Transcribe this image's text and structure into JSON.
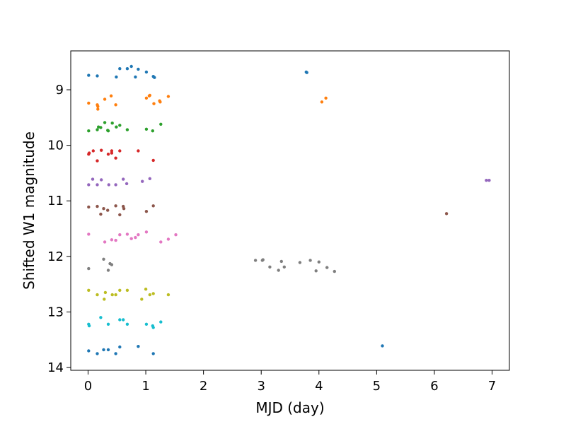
{
  "chart_data": {
    "type": "scatter",
    "xlabel": "MJD (day)",
    "ylabel": "Shifted W1 magnitude",
    "xlim": [
      -0.3,
      7.3
    ],
    "ylim": [
      14.05,
      8.3
    ],
    "y_inverted": true,
    "grid": false,
    "xticks": [
      0,
      1,
      2,
      3,
      4,
      5,
      6,
      7
    ],
    "yticks": [
      9,
      10,
      11,
      12,
      13,
      14
    ],
    "series": [
      {
        "color": "#1f77b4",
        "points": [
          [
            0.01,
            8.74
          ],
          [
            0.16,
            8.75
          ],
          [
            0.49,
            8.77
          ],
          [
            0.55,
            8.62
          ],
          [
            0.68,
            8.62
          ],
          [
            0.75,
            8.58
          ],
          [
            0.82,
            8.77
          ],
          [
            0.87,
            8.63
          ],
          [
            1.01,
            8.68
          ],
          [
            1.13,
            8.76
          ],
          [
            1.15,
            8.78
          ],
          [
            3.78,
            8.68
          ],
          [
            3.79,
            8.69
          ]
        ]
      },
      {
        "color": "#ff7f0e",
        "points": [
          [
            0.01,
            9.24
          ],
          [
            0.16,
            9.27
          ],
          [
            0.17,
            9.3
          ],
          [
            0.17,
            9.35
          ],
          [
            0.29,
            9.17
          ],
          [
            0.4,
            9.11
          ],
          [
            0.48,
            9.27
          ],
          [
            1.01,
            9.15
          ],
          [
            1.06,
            9.11
          ],
          [
            1.07,
            9.1
          ],
          [
            1.14,
            9.25
          ],
          [
            1.24,
            9.2
          ],
          [
            1.25,
            9.22
          ],
          [
            1.39,
            9.12
          ],
          [
            4.05,
            9.22
          ],
          [
            4.12,
            9.15
          ]
        ]
      },
      {
        "color": "#2ca02c",
        "points": [
          [
            0.01,
            9.74
          ],
          [
            0.16,
            9.72
          ],
          [
            0.18,
            9.67
          ],
          [
            0.22,
            9.68
          ],
          [
            0.29,
            9.59
          ],
          [
            0.34,
            9.73
          ],
          [
            0.35,
            9.74
          ],
          [
            0.42,
            9.6
          ],
          [
            0.49,
            9.67
          ],
          [
            0.55,
            9.64
          ],
          [
            0.68,
            9.72
          ],
          [
            1.01,
            9.71
          ],
          [
            1.12,
            9.74
          ],
          [
            1.26,
            9.62
          ]
        ]
      },
      {
        "color": "#d62728",
        "points": [
          [
            0.01,
            10.16
          ],
          [
            0.02,
            10.14
          ],
          [
            0.09,
            10.1
          ],
          [
            0.16,
            10.28
          ],
          [
            0.23,
            10.09
          ],
          [
            0.35,
            10.16
          ],
          [
            0.41,
            10.14
          ],
          [
            0.41,
            10.1
          ],
          [
            0.48,
            10.23
          ],
          [
            0.55,
            10.1
          ],
          [
            0.87,
            10.1
          ],
          [
            1.13,
            10.27
          ]
        ]
      },
      {
        "color": "#9467bd",
        "points": [
          [
            0.01,
            10.71
          ],
          [
            0.08,
            10.61
          ],
          [
            0.16,
            10.71
          ],
          [
            0.23,
            10.62
          ],
          [
            0.36,
            10.71
          ],
          [
            0.48,
            10.71
          ],
          [
            0.61,
            10.61
          ],
          [
            0.67,
            10.69
          ],
          [
            0.94,
            10.65
          ],
          [
            1.07,
            10.6
          ],
          [
            6.9,
            10.63
          ],
          [
            6.95,
            10.63
          ]
        ]
      },
      {
        "color": "#8c564b",
        "points": [
          [
            0.01,
            11.11
          ],
          [
            0.16,
            11.1
          ],
          [
            0.22,
            11.24
          ],
          [
            0.27,
            11.14
          ],
          [
            0.34,
            11.17
          ],
          [
            0.48,
            11.09
          ],
          [
            0.55,
            11.25
          ],
          [
            0.61,
            11.1
          ],
          [
            0.62,
            11.14
          ],
          [
            1.01,
            11.19
          ],
          [
            1.13,
            11.09
          ],
          [
            6.21,
            11.23
          ]
        ]
      },
      {
        "color": "#e377c2",
        "points": [
          [
            0.01,
            11.6
          ],
          [
            0.29,
            11.74
          ],
          [
            0.41,
            11.7
          ],
          [
            0.48,
            11.71
          ],
          [
            0.55,
            11.61
          ],
          [
            0.68,
            11.6
          ],
          [
            0.75,
            11.68
          ],
          [
            0.82,
            11.66
          ],
          [
            0.87,
            11.61
          ],
          [
            1.01,
            11.56
          ],
          [
            1.26,
            11.74
          ],
          [
            1.39,
            11.69
          ],
          [
            1.52,
            11.61
          ]
        ]
      },
      {
        "color": "#7f7f7f",
        "points": [
          [
            0.01,
            12.22
          ],
          [
            0.27,
            12.05
          ],
          [
            0.35,
            12.25
          ],
          [
            0.38,
            12.13
          ],
          [
            0.41,
            12.15
          ],
          [
            2.9,
            12.07
          ],
          [
            3.02,
            12.07
          ],
          [
            3.03,
            12.06
          ],
          [
            3.15,
            12.19
          ],
          [
            3.3,
            12.25
          ],
          [
            3.35,
            12.09
          ],
          [
            3.4,
            12.19
          ],
          [
            3.67,
            12.11
          ],
          [
            3.85,
            12.07
          ],
          [
            3.95,
            12.26
          ],
          [
            4.0,
            12.1
          ],
          [
            4.14,
            12.2
          ],
          [
            4.27,
            12.27
          ]
        ]
      },
      {
        "color": "#bcbd22",
        "points": [
          [
            0.01,
            12.61
          ],
          [
            0.16,
            12.69
          ],
          [
            0.28,
            12.77
          ],
          [
            0.3,
            12.65
          ],
          [
            0.42,
            12.69
          ],
          [
            0.48,
            12.69
          ],
          [
            0.55,
            12.61
          ],
          [
            0.68,
            12.61
          ],
          [
            0.93,
            12.77
          ],
          [
            1.0,
            12.59
          ],
          [
            1.07,
            12.69
          ],
          [
            1.13,
            12.67
          ],
          [
            1.39,
            12.69
          ]
        ]
      },
      {
        "color": "#17becf",
        "points": [
          [
            0.01,
            13.22
          ],
          [
            0.02,
            13.25
          ],
          [
            0.22,
            13.1
          ],
          [
            0.35,
            13.22
          ],
          [
            0.55,
            13.14
          ],
          [
            0.61,
            13.14
          ],
          [
            0.68,
            13.22
          ],
          [
            1.01,
            13.22
          ],
          [
            1.12,
            13.25
          ],
          [
            1.13,
            13.28
          ],
          [
            1.26,
            13.18
          ]
        ]
      },
      {
        "color": "#1f77b4",
        "points": [
          [
            0.01,
            13.7
          ],
          [
            0.16,
            13.75
          ],
          [
            0.27,
            13.68
          ],
          [
            0.35,
            13.68
          ],
          [
            0.48,
            13.75
          ],
          [
            0.55,
            13.63
          ],
          [
            0.87,
            13.62
          ],
          [
            1.13,
            13.75
          ],
          [
            5.1,
            13.61
          ]
        ]
      }
    ]
  }
}
